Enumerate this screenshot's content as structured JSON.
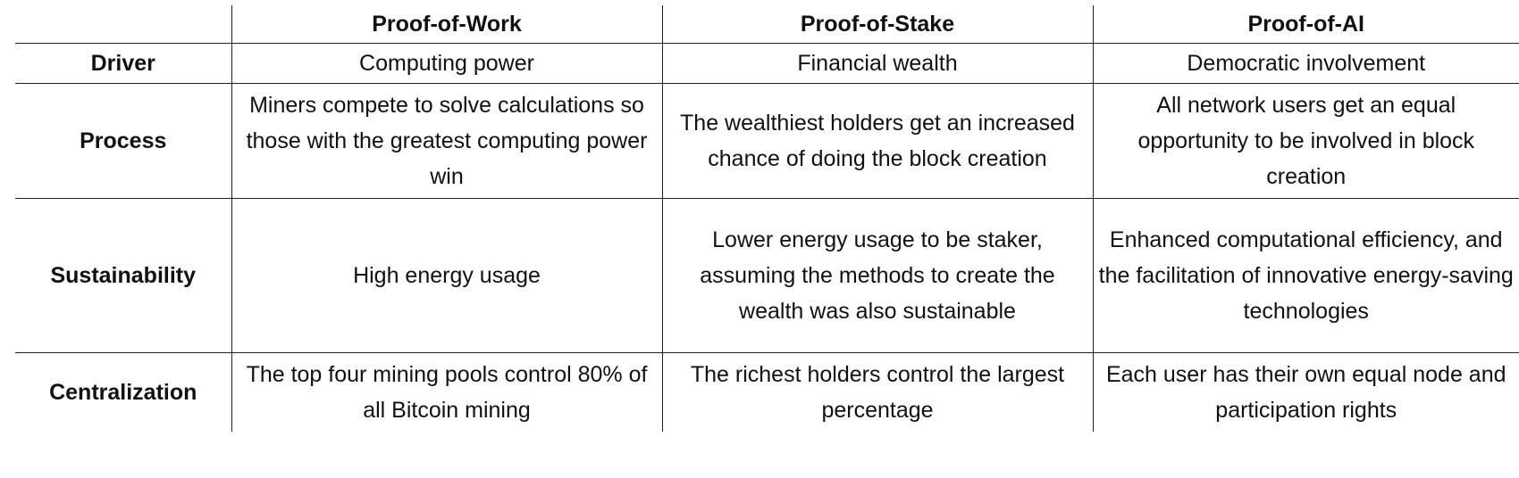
{
  "table": {
    "columns": [
      "",
      "Proof-of-Work",
      "Proof-of-Stake",
      "Proof-of-AI"
    ],
    "rows": [
      {
        "label": "Driver",
        "cells": [
          "Computing power",
          "Financial wealth",
          "Democratic involvement"
        ]
      },
      {
        "label": "Process",
        "cells": [
          "Miners compete to solve calculations so those with the greatest computing power win",
          "The wealthiest holders get an increased chance of doing the block creation",
          "All network users get an equal opportunity to be involved in block creation"
        ]
      },
      {
        "label": "Sustainability",
        "cells": [
          "High energy usage",
          "Lower energy usage to be staker, assuming the methods to create the wealth was also sustainable",
          "Enhanced computational efficiency, and the facilitation of innovative energy-saving technologies"
        ]
      },
      {
        "label": "Centralization",
        "cells": [
          "The top four mining pools control 80% of all Bitcoin mining",
          "The richest holders control the largest percentage",
          "Each user has their own equal node and participation rights"
        ]
      }
    ]
  }
}
